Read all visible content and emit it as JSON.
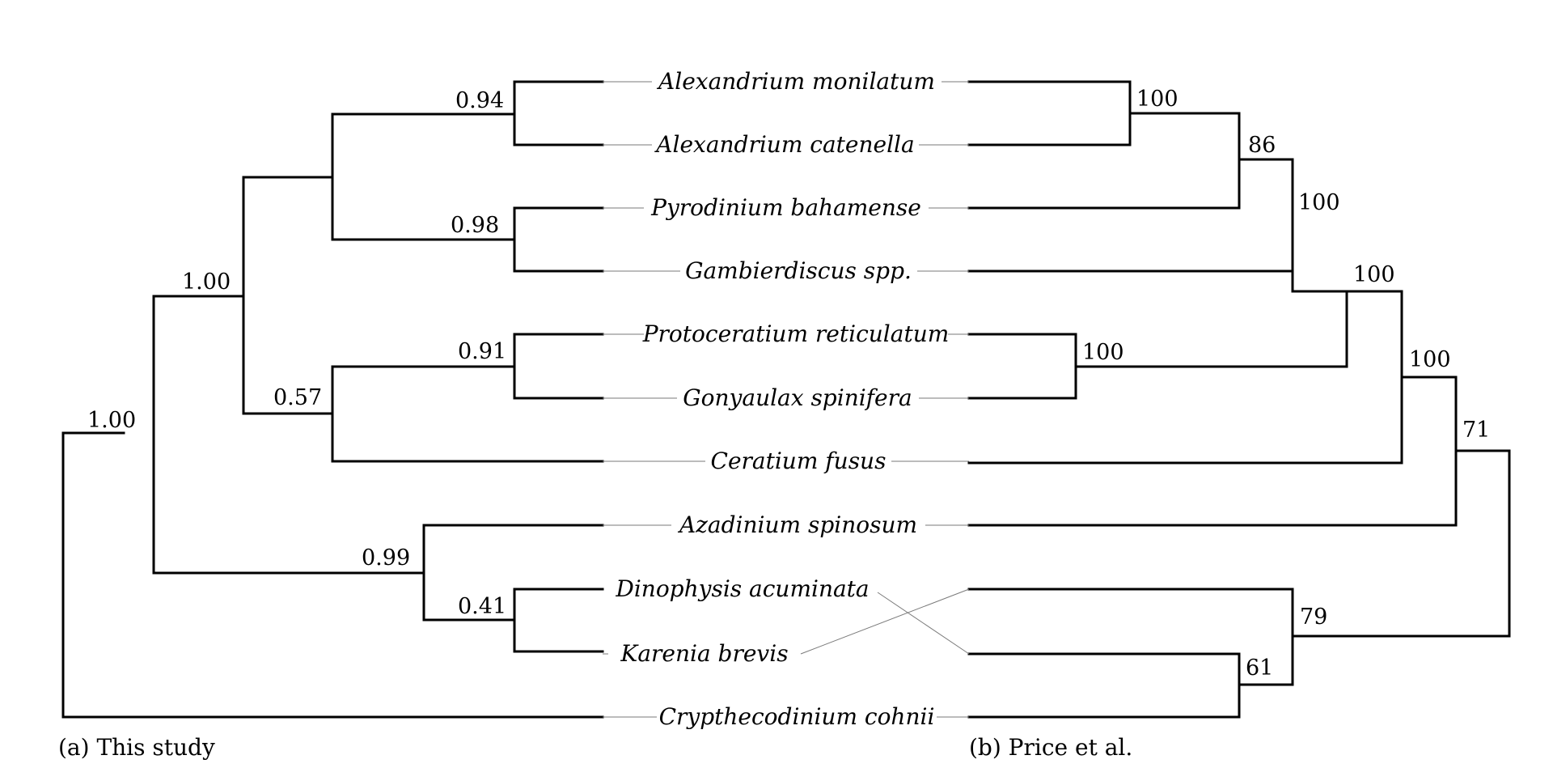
{
  "figure": {
    "left_caption": "(a) This study",
    "right_caption": "(b) Price et al."
  },
  "taxa": [
    "Alexandrium monilatum",
    "Alexandrium catenella",
    "Pyrodinium bahamense",
    "Gambierdiscus spp.",
    "Protoceratium reticulatum",
    "Gonyaulax spinifera",
    "Ceratium fusus",
    "Azadinium spinosum",
    "Dinophysis acuminata",
    "Karenia brevis",
    "Crypthecodinium cohnii"
  ],
  "left_tree": {
    "support_values": [
      "1.00",
      "1.00",
      "0.94",
      "0.98",
      "0.91",
      "0.57",
      "0.99",
      "0.41"
    ],
    "leaf_order": [
      "Alexandrium monilatum",
      "Alexandrium catenella",
      "Pyrodinium bahamense",
      "Gambierdiscus spp.",
      "Protoceratium reticulatum",
      "Gonyaulax spinifera",
      "Ceratium fusus",
      "Azadinium spinosum",
      "Dinophysis acuminata",
      "Karenia brevis",
      "Crypthecodinium cohnii"
    ]
  },
  "right_tree": {
    "support_values": [
      "100",
      "86",
      "100",
      "100",
      "100",
      "100",
      "71",
      "79",
      "61"
    ],
    "leaf_order": [
      "Alexandrium monilatum",
      "Alexandrium catenella",
      "Pyrodinium bahamense",
      "Gambierdiscus spp.",
      "Protoceratium reticulatum",
      "Gonyaulax spinifera",
      "Ceratium fusus",
      "Azadinium spinosum",
      "Karenia brevis",
      "Dinophysis acuminata",
      "Crypthecodinium cohnii"
    ]
  }
}
